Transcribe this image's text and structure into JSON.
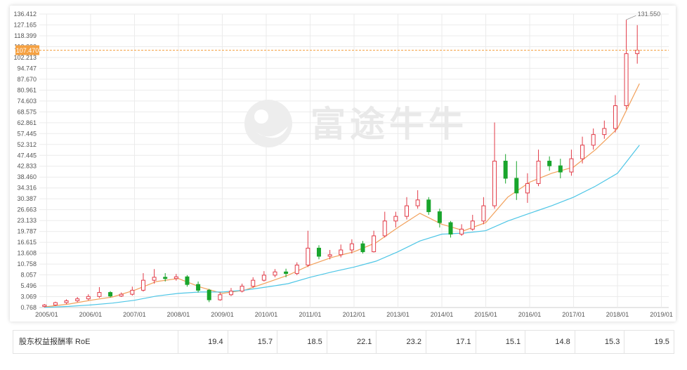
{
  "watermark": {
    "brand": "富途牛牛",
    "icon": "futu-logo-icon"
  },
  "colors": {
    "up": "#e23b48",
    "down": "#19a52c",
    "ma_fast": "#f2a05a",
    "ma_slow": "#4ec6e6",
    "grid": "#ebebeb",
    "crosshair": "#f5a142",
    "marker_bg": "#f5a142"
  },
  "chart_data": {
    "type": "candlestick",
    "title": "",
    "xlabel": "",
    "ylabel": "",
    "x_ticks": [
      "2005/01",
      "2006/01",
      "2007/01",
      "2008/01",
      "2009/01",
      "2010/01",
      "2011/01",
      "2012/01",
      "2013/01",
      "2014/01",
      "2015/01",
      "2016/01",
      "2017/01",
      "2018/01",
      "2019/01"
    ],
    "y_ticks": [
      "136.412",
      "127.165",
      "118.399",
      "110.000",
      "102.213",
      "94.747",
      "87.670",
      "80.961",
      "74.603",
      "68.575",
      "62.861",
      "57.445",
      "52.312",
      "47.445",
      "42.833",
      "38.460",
      "34.316",
      "30.387",
      "26.663",
      "23.133",
      "19.787",
      "16.615",
      "13.608",
      "10.758",
      "8.057",
      "5.496",
      "3.069",
      "0.768"
    ],
    "ylim": [
      0.768,
      136.412
    ],
    "xlim": [
      "2004/11",
      "2019/03"
    ],
    "crosshair_value": "107.470",
    "max_label": "131.550",
    "grid": true,
    "series": [
      {
        "name": "",
        "type": "candlestick",
        "t": [
          2004.95,
          2005.2,
          2005.45,
          2005.7,
          2005.95,
          2006.2,
          2006.45,
          2006.7,
          2006.95,
          2007.2,
          2007.45,
          2007.7,
          2007.95,
          2008.2,
          2008.45,
          2008.7,
          2008.95,
          2009.2,
          2009.45,
          2009.7,
          2009.95,
          2010.2,
          2010.45,
          2010.7,
          2010.95,
          2011.2,
          2011.45,
          2011.7,
          2011.95,
          2012.2,
          2012.45,
          2012.7,
          2012.95,
          2013.2,
          2013.45,
          2013.7,
          2013.95,
          2014.2,
          2014.45,
          2014.7,
          2014.95,
          2015.2,
          2015.45,
          2015.7,
          2015.95,
          2016.2,
          2016.45,
          2016.7,
          2016.95,
          2017.2,
          2017.45,
          2017.7,
          2017.95,
          2018.2,
          2018.45
        ],
        "open": [
          1.0,
          1.3,
          1.8,
          2.2,
          2.6,
          3.1,
          4.0,
          3.2,
          3.6,
          4.5,
          6.8,
          7.5,
          7.2,
          7.6,
          5.8,
          4.5,
          2.4,
          3.5,
          4.3,
          5.4,
          6.8,
          8.0,
          8.8,
          8.4,
          10.5,
          15.0,
          12.8,
          13.2,
          14.5,
          16.2,
          14.0,
          18.5,
          23.0,
          24.5,
          28.0,
          30.0,
          26.0,
          22.5,
          19.0,
          20.5,
          23.0,
          28.0,
          45.0,
          38.0,
          32.5,
          36.0,
          45.0,
          43.0,
          40.5,
          46.0,
          52.0,
          57.0,
          60.0,
          72.0,
          105.0
        ],
        "close": [
          1.3,
          1.8,
          2.2,
          2.6,
          3.1,
          4.0,
          3.2,
          3.6,
          4.5,
          6.8,
          7.5,
          7.2,
          7.6,
          5.8,
          4.5,
          2.4,
          3.5,
          4.3,
          5.4,
          6.8,
          8.0,
          8.8,
          8.4,
          10.5,
          15.0,
          12.8,
          13.2,
          14.5,
          16.2,
          14.0,
          18.5,
          23.0,
          24.5,
          28.0,
          30.0,
          26.0,
          22.5,
          19.0,
          20.5,
          23.0,
          28.0,
          45.0,
          38.0,
          32.5,
          36.0,
          45.0,
          43.0,
          40.5,
          46.0,
          52.0,
          57.0,
          60.0,
          72.0,
          105.0,
          107.47
        ],
        "high": [
          1.5,
          2.0,
          2.5,
          3.0,
          3.6,
          5.2,
          4.3,
          4.0,
          5.3,
          8.5,
          9.5,
          8.5,
          8.3,
          8.0,
          6.5,
          4.8,
          4.0,
          5.0,
          6.0,
          7.5,
          9.0,
          9.5,
          9.6,
          11.2,
          20.0,
          15.8,
          14.5,
          16.0,
          17.5,
          17.0,
          20.0,
          26.0,
          26.0,
          31.0,
          33.5,
          31.0,
          27.0,
          23.0,
          22.0,
          25.0,
          31.0,
          63.0,
          48.0,
          45.0,
          40.0,
          50.0,
          47.0,
          46.0,
          50.0,
          56.0,
          60.0,
          64.0,
          78.0,
          131.55,
          127.0
        ],
        "low": [
          0.8,
          1.1,
          1.5,
          1.9,
          2.3,
          2.8,
          2.9,
          3.0,
          3.3,
          4.2,
          6.0,
          6.5,
          6.7,
          5.3,
          4.0,
          1.9,
          2.2,
          3.2,
          4.0,
          5.0,
          6.5,
          7.5,
          7.5,
          8.0,
          10.0,
          12.0,
          12.0,
          12.5,
          13.5,
          13.5,
          13.8,
          18.0,
          21.0,
          23.5,
          27.0,
          25.0,
          21.0,
          18.0,
          18.5,
          20.0,
          22.0,
          27.0,
          36.0,
          30.0,
          29.0,
          35.0,
          41.0,
          38.0,
          39.0,
          44.0,
          50.0,
          55.0,
          58.0,
          70.0,
          98.0
        ]
      },
      {
        "name": "",
        "type": "line",
        "color": "#f2a05a",
        "t": [
          2004.95,
          2005.5,
          2006.0,
          2006.5,
          2007.0,
          2007.5,
          2008.0,
          2008.5,
          2009.0,
          2009.5,
          2010.0,
          2010.5,
          2011.0,
          2011.5,
          2012.0,
          2012.5,
          2013.0,
          2013.5,
          2014.0,
          2014.5,
          2015.0,
          2015.5,
          2016.0,
          2016.5,
          2017.0,
          2017.5,
          2018.0,
          2018.5
        ],
        "values": [
          0.9,
          1.5,
          2.3,
          3.0,
          4.5,
          6.5,
          7.2,
          5.2,
          3.8,
          4.5,
          6.2,
          8.0,
          10.5,
          12.5,
          14.0,
          16.5,
          21.0,
          25.5,
          22.0,
          20.0,
          22.5,
          31.0,
          36.5,
          40.0,
          42.5,
          50.0,
          60.0,
          85.0
        ]
      },
      {
        "name": "",
        "type": "line",
        "color": "#4ec6e6",
        "t": [
          2004.95,
          2005.5,
          2006.0,
          2006.5,
          2007.0,
          2007.5,
          2008.0,
          2008.5,
          2009.0,
          2009.5,
          2010.0,
          2010.5,
          2011.0,
          2011.5,
          2012.0,
          2012.5,
          2013.0,
          2013.5,
          2014.0,
          2014.5,
          2015.0,
          2015.5,
          2016.0,
          2016.5,
          2017.0,
          2017.5,
          2018.0,
          2018.5
        ],
        "values": [
          0.8,
          1.0,
          1.3,
          1.7,
          2.3,
          3.2,
          3.8,
          4.1,
          4.1,
          4.5,
          5.2,
          6.0,
          7.5,
          8.8,
          10.0,
          11.5,
          14.0,
          17.0,
          19.0,
          19.3,
          20.0,
          23.0,
          25.5,
          28.0,
          31.0,
          35.0,
          40.0,
          52.0
        ]
      }
    ]
  },
  "roe_table": {
    "label": "股东权益报酬率 RoE",
    "values": [
      "19.4",
      "15.7",
      "18.5",
      "22.1",
      "23.2",
      "17.1",
      "15.1",
      "14.8",
      "15.3",
      "19.5"
    ]
  }
}
